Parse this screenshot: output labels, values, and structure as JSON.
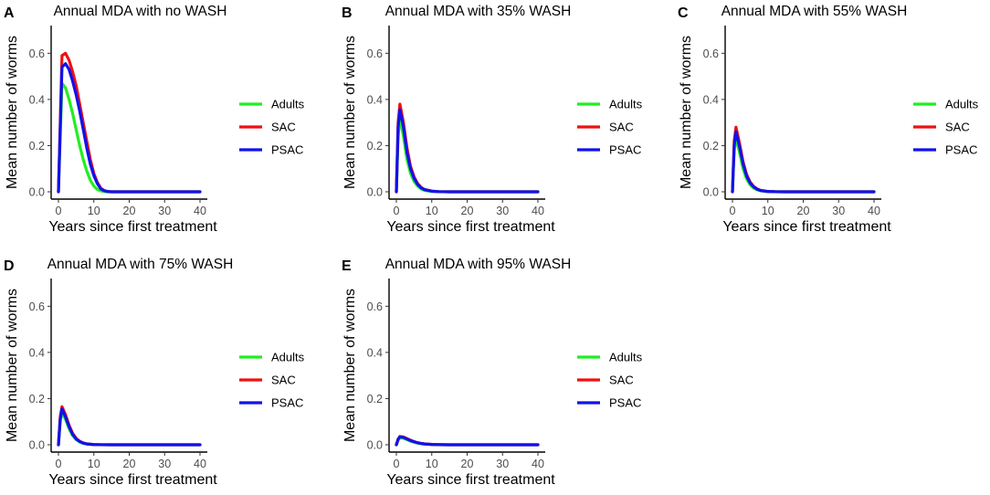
{
  "chart_data": [
    {
      "type": "line",
      "panel": "A",
      "title": "Annual MDA with no WASH",
      "xlabel": "Years since first treatment",
      "ylabel": "Mean number of worms",
      "xlim": [
        0,
        40
      ],
      "ylim": [
        0,
        0.72
      ],
      "xticks": [
        "0",
        "10",
        "20",
        "30",
        "40"
      ],
      "yticks": [
        "0.0",
        "0.2",
        "0.4",
        "0.6"
      ],
      "legend": {
        "position": "right",
        "entries": [
          "Adults",
          "SAC",
          "PSAC"
        ]
      },
      "series": [
        {
          "name": "Adults",
          "color": "#22ee22",
          "x": [
            0,
            1,
            2,
            3,
            4,
            5,
            6,
            7,
            8,
            9,
            10,
            11,
            12,
            13,
            14,
            15,
            20,
            25,
            30,
            35,
            40
          ],
          "values": [
            0.0,
            0.47,
            0.45,
            0.4,
            0.34,
            0.27,
            0.2,
            0.14,
            0.09,
            0.05,
            0.025,
            0.01,
            0.004,
            0.001,
            0.0,
            0.0,
            0.0,
            0.0,
            0.0,
            0.0,
            0.0
          ]
        },
        {
          "name": "SAC",
          "color": "#ee1111",
          "x": [
            0,
            1,
            2,
            3,
            4,
            5,
            6,
            7,
            8,
            9,
            10,
            11,
            12,
            13,
            14,
            15,
            20,
            25,
            30,
            35,
            40
          ],
          "values": [
            0.0,
            0.59,
            0.6,
            0.57,
            0.52,
            0.46,
            0.38,
            0.3,
            0.22,
            0.14,
            0.08,
            0.04,
            0.015,
            0.005,
            0.001,
            0.0,
            0.0,
            0.0,
            0.0,
            0.0,
            0.0
          ]
        },
        {
          "name": "PSAC",
          "color": "#1111ee",
          "x": [
            0,
            1,
            2,
            3,
            4,
            5,
            6,
            7,
            8,
            9,
            10,
            11,
            12,
            13,
            14,
            15,
            20,
            25,
            30,
            35,
            40
          ],
          "values": [
            0.0,
            0.54,
            0.555,
            0.53,
            0.48,
            0.42,
            0.35,
            0.27,
            0.19,
            0.12,
            0.07,
            0.035,
            0.012,
            0.004,
            0.001,
            0.0,
            0.0,
            0.0,
            0.0,
            0.0,
            0.0
          ]
        }
      ]
    },
    {
      "type": "line",
      "panel": "B",
      "title": "Annual MDA with 35% WASH",
      "xlabel": "Years since first treatment",
      "ylabel": "Mean number of worms",
      "xlim": [
        0,
        40
      ],
      "ylim": [
        0,
        0.72
      ],
      "xticks": [
        "0",
        "10",
        "20",
        "30",
        "40"
      ],
      "yticks": [
        "0.0",
        "0.2",
        "0.4",
        "0.6"
      ],
      "legend": {
        "position": "right",
        "entries": [
          "Adults",
          "SAC",
          "PSAC"
        ]
      },
      "series": [
        {
          "name": "Adults",
          "color": "#22ee22",
          "x": [
            0,
            0.5,
            1,
            2,
            3,
            4,
            5,
            6,
            7,
            8,
            10,
            12,
            15,
            20,
            30,
            40
          ],
          "values": [
            0.0,
            0.24,
            0.32,
            0.24,
            0.14,
            0.08,
            0.045,
            0.025,
            0.012,
            0.006,
            0.0015,
            0.0004,
            0.0,
            0.0,
            0.0,
            0.0
          ]
        },
        {
          "name": "SAC",
          "color": "#ee1111",
          "x": [
            0,
            0.5,
            1,
            2,
            3,
            4,
            5,
            6,
            7,
            8,
            10,
            12,
            15,
            20,
            30,
            40
          ],
          "values": [
            0.0,
            0.3,
            0.38,
            0.3,
            0.19,
            0.11,
            0.065,
            0.036,
            0.019,
            0.01,
            0.003,
            0.0008,
            0.0,
            0.0,
            0.0,
            0.0
          ]
        },
        {
          "name": "PSAC",
          "color": "#1111ee",
          "x": [
            0,
            0.5,
            1,
            2,
            3,
            4,
            5,
            6,
            7,
            8,
            10,
            12,
            15,
            20,
            30,
            40
          ],
          "values": [
            0.0,
            0.28,
            0.355,
            0.28,
            0.17,
            0.1,
            0.058,
            0.032,
            0.017,
            0.009,
            0.0025,
            0.0007,
            0.0,
            0.0,
            0.0,
            0.0
          ]
        }
      ]
    },
    {
      "type": "line",
      "panel": "C",
      "title": "Annual MDA with 55% WASH",
      "xlabel": "Years since first treatment",
      "ylabel": "Mean number of worms",
      "xlim": [
        0,
        40
      ],
      "ylim": [
        0,
        0.72
      ],
      "xticks": [
        "0",
        "10",
        "20",
        "30",
        "40"
      ],
      "yticks": [
        "0.0",
        "0.2",
        "0.4",
        "0.6"
      ],
      "legend": {
        "position": "right",
        "entries": [
          "Adults",
          "SAC",
          "PSAC"
        ]
      },
      "series": [
        {
          "name": "Adults",
          "color": "#22ee22",
          "x": [
            0,
            0.5,
            1,
            2,
            3,
            4,
            5,
            6,
            7,
            8,
            10,
            12,
            15,
            20,
            30,
            40
          ],
          "values": [
            0.0,
            0.18,
            0.23,
            0.17,
            0.1,
            0.055,
            0.03,
            0.016,
            0.008,
            0.004,
            0.001,
            0.0003,
            0.0,
            0.0,
            0.0,
            0.0
          ]
        },
        {
          "name": "SAC",
          "color": "#ee1111",
          "x": [
            0,
            0.5,
            1,
            2,
            3,
            4,
            5,
            6,
            7,
            8,
            10,
            12,
            15,
            20,
            30,
            40
          ],
          "values": [
            0.0,
            0.22,
            0.28,
            0.21,
            0.13,
            0.075,
            0.042,
            0.023,
            0.012,
            0.006,
            0.0015,
            0.0004,
            0.0,
            0.0,
            0.0,
            0.0
          ]
        },
        {
          "name": "PSAC",
          "color": "#1111ee",
          "x": [
            0,
            0.5,
            1,
            2,
            3,
            4,
            5,
            6,
            7,
            8,
            10,
            12,
            15,
            20,
            30,
            40
          ],
          "values": [
            0.0,
            0.2,
            0.26,
            0.195,
            0.12,
            0.068,
            0.038,
            0.021,
            0.011,
            0.0055,
            0.0014,
            0.0004,
            0.0,
            0.0,
            0.0,
            0.0
          ]
        }
      ]
    },
    {
      "type": "line",
      "panel": "D",
      "title": "Annual MDA with 75% WASH",
      "xlabel": "Years since first treatment",
      "ylabel": "Mean number of worms",
      "xlim": [
        0,
        40
      ],
      "ylim": [
        0,
        0.72
      ],
      "xticks": [
        "0",
        "10",
        "20",
        "30",
        "40"
      ],
      "yticks": [
        "0.0",
        "0.2",
        "0.4",
        "0.6"
      ],
      "legend": {
        "position": "right",
        "entries": [
          "Adults",
          "SAC",
          "PSAC"
        ]
      },
      "series": [
        {
          "name": "Adults",
          "color": "#22ee22",
          "x": [
            0,
            0.5,
            1,
            2,
            3,
            4,
            5,
            6,
            7,
            8,
            10,
            12,
            15,
            20,
            30,
            40
          ],
          "values": [
            0.0,
            0.1,
            0.14,
            0.11,
            0.07,
            0.04,
            0.022,
            0.012,
            0.006,
            0.003,
            0.0008,
            0.0002,
            0.0,
            0.0,
            0.0,
            0.0
          ]
        },
        {
          "name": "SAC",
          "color": "#ee1111",
          "x": [
            0,
            0.5,
            1,
            2,
            3,
            4,
            5,
            6,
            7,
            8,
            10,
            12,
            15,
            20,
            30,
            40
          ],
          "values": [
            0.0,
            0.12,
            0.165,
            0.13,
            0.085,
            0.05,
            0.028,
            0.015,
            0.008,
            0.004,
            0.001,
            0.0003,
            0.0,
            0.0,
            0.0,
            0.0
          ]
        },
        {
          "name": "PSAC",
          "color": "#1111ee",
          "x": [
            0,
            0.5,
            1,
            2,
            3,
            4,
            5,
            6,
            7,
            8,
            10,
            12,
            15,
            20,
            30,
            40
          ],
          "values": [
            0.0,
            0.11,
            0.155,
            0.12,
            0.078,
            0.045,
            0.025,
            0.014,
            0.007,
            0.0035,
            0.0009,
            0.0002,
            0.0,
            0.0,
            0.0,
            0.0
          ]
        }
      ]
    },
    {
      "type": "line",
      "panel": "E",
      "title": "Annual MDA with 95% WASH",
      "xlabel": "Years since first treatment",
      "ylabel": "Mean number of worms",
      "xlim": [
        0,
        40
      ],
      "ylim": [
        0,
        0.72
      ],
      "xticks": [
        "0",
        "10",
        "20",
        "30",
        "40"
      ],
      "yticks": [
        "0.0",
        "0.2",
        "0.4",
        "0.6"
      ],
      "legend": {
        "position": "right",
        "entries": [
          "Adults",
          "SAC",
          "PSAC"
        ]
      },
      "series": [
        {
          "name": "Adults",
          "color": "#22ee22",
          "x": [
            0,
            0.5,
            1,
            2,
            3,
            4,
            5,
            6,
            7,
            8,
            10,
            12,
            15,
            20,
            30,
            40
          ],
          "values": [
            0.0,
            0.02,
            0.03,
            0.028,
            0.022,
            0.016,
            0.011,
            0.007,
            0.0045,
            0.003,
            0.0012,
            0.0005,
            0.0001,
            0.0,
            0.0,
            0.0
          ]
        },
        {
          "name": "SAC",
          "color": "#ee1111",
          "x": [
            0,
            0.5,
            1,
            2,
            3,
            4,
            5,
            6,
            7,
            8,
            10,
            12,
            15,
            20,
            30,
            40
          ],
          "values": [
            0.0,
            0.025,
            0.036,
            0.034,
            0.027,
            0.02,
            0.014,
            0.009,
            0.006,
            0.004,
            0.0016,
            0.0006,
            0.0001,
            0.0,
            0.0,
            0.0
          ]
        },
        {
          "name": "PSAC",
          "color": "#1111ee",
          "x": [
            0,
            0.5,
            1,
            2,
            3,
            4,
            5,
            6,
            7,
            8,
            10,
            12,
            15,
            20,
            30,
            40
          ],
          "values": [
            0.0,
            0.024,
            0.034,
            0.032,
            0.025,
            0.018,
            0.013,
            0.0085,
            0.0055,
            0.0035,
            0.0014,
            0.0005,
            0.0001,
            0.0,
            0.0,
            0.0
          ]
        }
      ]
    }
  ]
}
